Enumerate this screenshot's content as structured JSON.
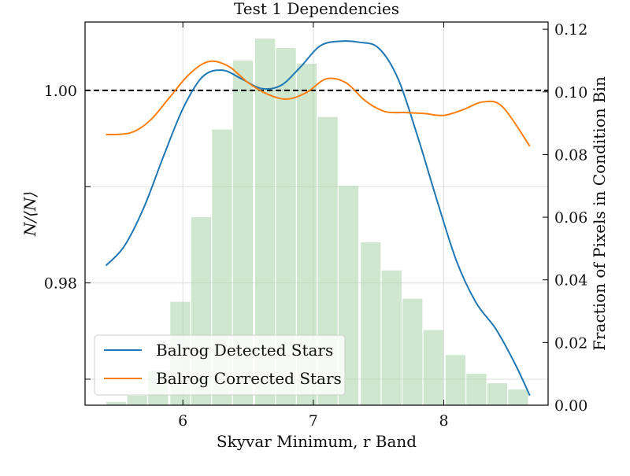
{
  "chart_data": {
    "type": "bar+line",
    "title": "Test 1 Dependencies",
    "xlabel": "Skyvar Minimum, r Band",
    "ylabel": "N/⟨N⟩",
    "ylabel_right": "Fraction of Pixels in Condition Bin",
    "xlim": [
      5.25,
      8.8
    ],
    "ylim": [
      0.9673,
      1.0071
    ],
    "ylim_right": [
      0.0,
      0.1223
    ],
    "x_ticks": [
      6,
      7,
      8
    ],
    "x_tick_labels": [
      "6",
      "7",
      "8"
    ],
    "y_ticks": [
      0.97,
      0.98,
      0.99,
      1.0
    ],
    "y_tick_labels": [
      "",
      "0.98",
      "",
      "1.00"
    ],
    "y_right_ticks": [
      0.0,
      0.02,
      0.04,
      0.06,
      0.08,
      0.1,
      0.12
    ],
    "y_right_tick_labels": [
      "0.00",
      "0.02",
      "0.04",
      "0.06",
      "0.08",
      "0.10",
      "0.12"
    ],
    "grid": true,
    "reference_line": {
      "y": 1.0,
      "style": "dashed",
      "color": "#000000"
    },
    "histogram": {
      "bin_width": 0.162,
      "bin_centers": [
        5.49,
        5.65,
        5.81,
        5.98,
        6.14,
        6.3,
        6.46,
        6.63,
        6.79,
        6.95,
        7.11,
        7.27,
        7.44,
        7.6,
        7.76,
        7.92,
        8.09,
        8.25,
        8.41,
        8.57
      ],
      "fractions": [
        0.001,
        0.003,
        0.011,
        0.033,
        0.06,
        0.088,
        0.11,
        0.117,
        0.114,
        0.109,
        0.092,
        0.07,
        0.052,
        0.043,
        0.034,
        0.024,
        0.016,
        0.01,
        0.007,
        0.005
      ],
      "color": "#a6d4a6"
    },
    "series": [
      {
        "name": "Balrog Detected Stars",
        "color": "#1f77b4",
        "x": [
          5.41,
          5.55,
          5.7,
          5.85,
          6.0,
          6.15,
          6.3,
          6.45,
          6.6,
          6.75,
          6.9,
          7.05,
          7.2,
          7.35,
          7.5,
          7.65,
          7.8,
          7.95,
          8.1,
          8.25,
          8.4,
          8.55,
          8.66
        ],
        "values": [
          0.9818,
          0.9838,
          0.9878,
          0.9931,
          0.9981,
          1.0014,
          1.0021,
          1.0012,
          1.0002,
          1.0005,
          1.0024,
          1.0046,
          1.0051,
          1.005,
          1.0044,
          1.0012,
          0.9952,
          0.9885,
          0.9822,
          0.9779,
          0.9752,
          0.9715,
          0.9683
        ]
      },
      {
        "name": "Balrog Corrected Stars",
        "color": "#ff7f0e",
        "x": [
          5.41,
          5.6,
          5.75,
          5.9,
          6.05,
          6.2,
          6.35,
          6.5,
          6.65,
          6.8,
          6.95,
          7.1,
          7.25,
          7.4,
          7.55,
          7.7,
          7.85,
          8.0,
          8.15,
          8.3,
          8.45,
          8.66
        ],
        "values": [
          0.9954,
          0.9956,
          0.9969,
          0.9993,
          1.0017,
          1.003,
          1.0025,
          1.0008,
          0.9996,
          0.9991,
          0.9998,
          1.0012,
          1.0008,
          0.9989,
          0.9978,
          0.9977,
          0.9976,
          0.9974,
          0.998,
          0.9988,
          0.9983,
          0.9942
        ]
      }
    ],
    "legend": {
      "position": "lower-left",
      "entries": [
        "Balrog Detected Stars",
        "Balrog Corrected Stars"
      ]
    }
  }
}
